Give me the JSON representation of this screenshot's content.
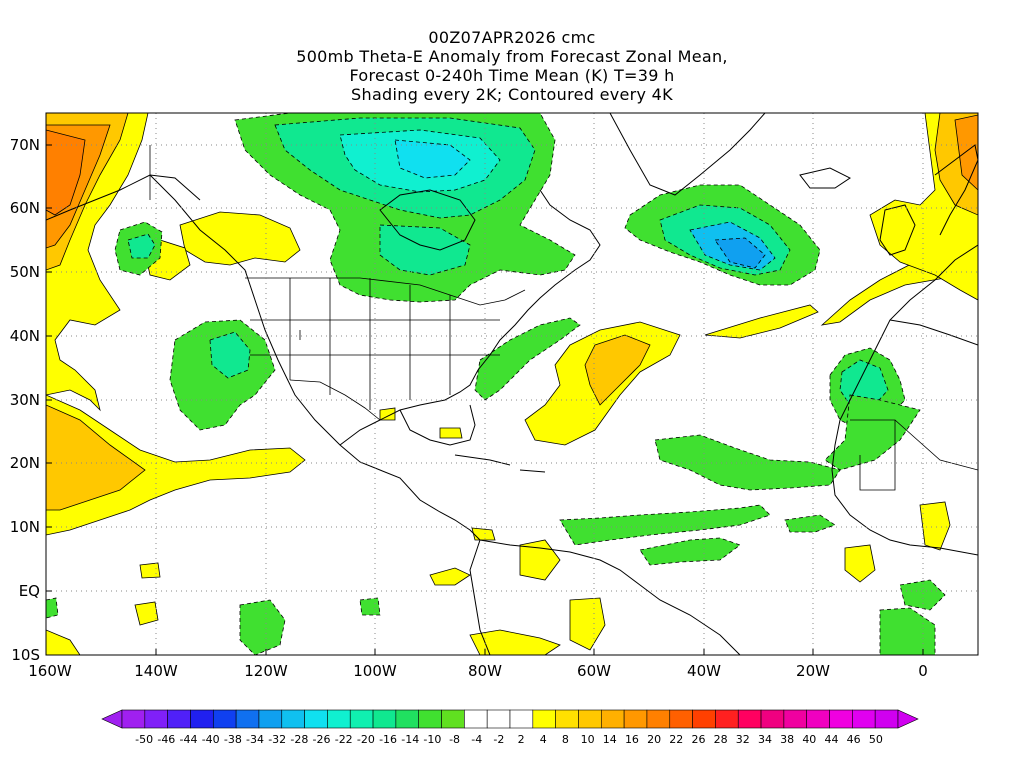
{
  "titles": {
    "line1": "00Z07APR2026 cmc",
    "line2": "500mb Theta-E Anomaly from Forecast Zonal Mean,",
    "line3": "Forecast 0-240h Time Mean (K) T=39 h",
    "line4": "Shading every 2K; Contoured every 4K"
  },
  "lat_labels": [
    "70N",
    "60N",
    "50N",
    "40N",
    "30N",
    "20N",
    "10N",
    "EQ",
    "10S"
  ],
  "lon_labels": [
    "160W",
    "140W",
    "120W",
    "100W",
    "80W",
    "60W",
    "40W",
    "20W",
    "0"
  ],
  "colorbar": {
    "labels": [
      "-50",
      "-46",
      "-44",
      "-40",
      "-38",
      "-34",
      "-32",
      "-28",
      "-26",
      "-22",
      "-20",
      "-16",
      "-14",
      "-10",
      "-8",
      "-4",
      "-2",
      "2",
      "4",
      "8",
      "10",
      "14",
      "16",
      "20",
      "22",
      "26",
      "28",
      "32",
      "34",
      "38",
      "40",
      "44",
      "46",
      "50"
    ],
    "colors": [
      "#a020f0",
      "#8020f8",
      "#5020f8",
      "#2020f0",
      "#1040f0",
      "#1070f0",
      "#10a0f0",
      "#10c0f0",
      "#10e0f0",
      "#10f0d0",
      "#10f0b0",
      "#10e890",
      "#20e060",
      "#40e030",
      "#60e020",
      "#ffffff",
      "#ffffff",
      "#ffffff",
      "#ffff00",
      "#ffe000",
      "#ffc800",
      "#ffb000",
      "#ff9800",
      "#ff8000",
      "#ff6000",
      "#ff4000",
      "#ff2020",
      "#ff0060",
      "#f00080",
      "#f000a0",
      "#f000c0",
      "#f000e0",
      "#e000f0",
      "#d000f0"
    ]
  },
  "map": {
    "lon_range": [
      -160,
      10
    ],
    "lat_range": [
      -10,
      75
    ],
    "shading": {
      "positive_light": "#ffff00",
      "positive_mid": "#ffc800",
      "positive_strong": "#ff9800",
      "positive_max": "#ff8000",
      "negative_light": "#40e030",
      "negative_mid": "#10e890",
      "negative_strong": "#10c0f0",
      "negative_max": "#10a0f0"
    }
  }
}
